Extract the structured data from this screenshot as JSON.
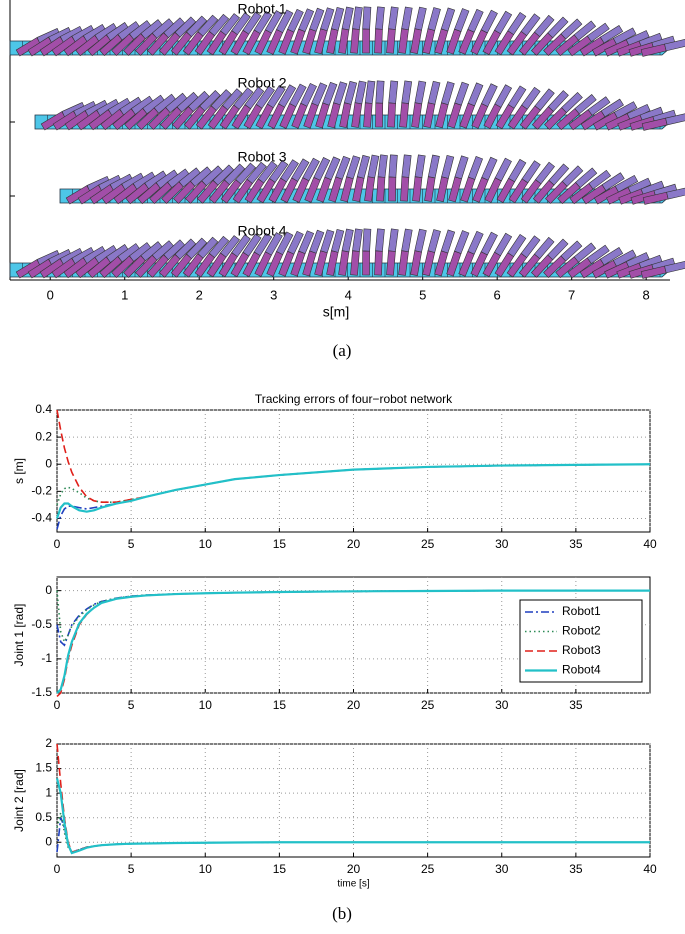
{
  "captions": [
    "(a)",
    "(b)"
  ],
  "chart_data": [
    {
      "type": "robot-configurations",
      "labels": [
        "Robot 1",
        "Robot 2",
        "Robot 3",
        "Robot 4"
      ],
      "xlabel": "s[m]",
      "xlim": [
        -0.54,
        8.32
      ],
      "xticks": [
        0,
        1,
        2,
        3,
        4,
        5,
        6,
        7,
        8
      ]
    },
    {
      "type": "line",
      "title": "Tracking errors of four−robot network",
      "ylabel": "s [m]",
      "x": [
        0,
        0.25,
        0.5,
        0.75,
        1,
        1.5,
        2,
        2.5,
        3,
        4,
        5,
        6,
        8,
        10,
        12,
        15,
        20,
        25,
        30,
        35,
        40
      ],
      "xlim": [
        0,
        40
      ],
      "xticks": [
        0,
        5,
        10,
        15,
        20,
        25,
        30,
        35,
        40
      ],
      "ylim": [
        -0.5,
        0.4
      ],
      "yticks": [
        -0.4,
        -0.2,
        0,
        0.2,
        0.4
      ],
      "grid": true,
      "series": [
        {
          "color": "#1f3fbf",
          "style": "dash-dot",
          "values": [
            -0.48,
            -0.38,
            -0.33,
            -0.31,
            -0.31,
            -0.32,
            -0.33,
            -0.32,
            -0.31,
            -0.29,
            -0.27,
            -0.24,
            -0.19,
            -0.15,
            -0.11,
            -0.08,
            -0.04,
            -0.02,
            -0.01,
            -0.005,
            0
          ]
        },
        {
          "color": "#2e8b57",
          "style": "dotted",
          "values": [
            -0.3,
            -0.22,
            -0.18,
            -0.17,
            -0.18,
            -0.21,
            -0.25,
            -0.27,
            -0.28,
            -0.28,
            -0.26,
            -0.24,
            -0.19,
            -0.15,
            -0.11,
            -0.08,
            -0.04,
            -0.02,
            -0.01,
            -0.005,
            0
          ]
        },
        {
          "color": "#e0201a",
          "style": "dashed",
          "values": [
            0.4,
            0.25,
            0.12,
            0.02,
            -0.06,
            -0.17,
            -0.24,
            -0.27,
            -0.28,
            -0.28,
            -0.26,
            -0.24,
            -0.19,
            -0.15,
            -0.11,
            -0.08,
            -0.04,
            -0.02,
            -0.01,
            -0.005,
            0
          ]
        },
        {
          "color": "#22c0c8",
          "style": "solid",
          "values": [
            -0.4,
            -0.32,
            -0.29,
            -0.29,
            -0.31,
            -0.34,
            -0.35,
            -0.34,
            -0.32,
            -0.29,
            -0.27,
            -0.24,
            -0.19,
            -0.15,
            -0.11,
            -0.08,
            -0.04,
            -0.02,
            -0.01,
            -0.005,
            0
          ]
        }
      ]
    },
    {
      "type": "line",
      "ylabel": "Joint 1 [rad]",
      "x": [
        0,
        0.25,
        0.5,
        0.75,
        1,
        1.5,
        2,
        2.5,
        3,
        4,
        5,
        6,
        8,
        10,
        12,
        15,
        20,
        25,
        30,
        35,
        40
      ],
      "xlim": [
        0,
        40
      ],
      "xticks": [
        0,
        5,
        10,
        15,
        20,
        25,
        30,
        35
      ],
      "ylim": [
        -1.5,
        0.2
      ],
      "yticks": [
        -1.5,
        -1,
        -0.5,
        0
      ],
      "grid": true,
      "legend": "right",
      "series": [
        {
          "name": "Robot1",
          "color": "#1f3fbf",
          "style": "dash-dot",
          "values": [
            -0.5,
            -0.75,
            -0.8,
            -0.65,
            -0.5,
            -0.36,
            -0.27,
            -0.2,
            -0.16,
            -0.11,
            -0.08,
            -0.065,
            -0.048,
            -0.038,
            -0.03,
            -0.02,
            -0.01,
            -0.005,
            0,
            0,
            0
          ]
        },
        {
          "name": "Robot2",
          "color": "#2e8b57",
          "style": "dotted",
          "values": [
            0,
            -0.6,
            -0.75,
            -0.65,
            -0.52,
            -0.38,
            -0.28,
            -0.21,
            -0.16,
            -0.11,
            -0.08,
            -0.065,
            -0.048,
            -0.038,
            -0.03,
            -0.02,
            -0.01,
            -0.005,
            0,
            0,
            0
          ]
        },
        {
          "name": "Robot3",
          "color": "#e0201a",
          "style": "dashed",
          "values": [
            -1.55,
            -1.5,
            -1.3,
            -1.0,
            -0.8,
            -0.5,
            -0.35,
            -0.25,
            -0.18,
            -0.12,
            -0.09,
            -0.07,
            -0.05,
            -0.038,
            -0.03,
            -0.02,
            -0.01,
            -0.005,
            0,
            0,
            0
          ]
        },
        {
          "name": "Robot4",
          "color": "#22c0c8",
          "style": "solid",
          "values": [
            -1.5,
            -1.45,
            -1.25,
            -0.95,
            -0.75,
            -0.48,
            -0.34,
            -0.25,
            -0.18,
            -0.12,
            -0.09,
            -0.07,
            -0.05,
            -0.038,
            -0.03,
            -0.02,
            -0.01,
            -0.005,
            0,
            0,
            0
          ]
        }
      ]
    },
    {
      "type": "line",
      "ylabel": "Joint 2 [rad]",
      "xlabel": "time [s]",
      "x": [
        0,
        0.25,
        0.5,
        0.75,
        1,
        1.5,
        2,
        2.5,
        3,
        4,
        5,
        6,
        8,
        10,
        12,
        15,
        20,
        25,
        30,
        35,
        40
      ],
      "xlim": [
        0,
        40
      ],
      "xticks": [
        0,
        5,
        10,
        15,
        20,
        25,
        30,
        35,
        40
      ],
      "ylim": [
        -0.3,
        2
      ],
      "yticks": [
        0,
        0.5,
        1,
        1.5,
        2
      ],
      "grid": true,
      "series": [
        {
          "color": "#1f3fbf",
          "style": "dash-dot",
          "values": [
            -0.2,
            0.5,
            0.3,
            -0.05,
            -0.2,
            -0.15,
            -0.1,
            -0.08,
            -0.06,
            -0.04,
            -0.03,
            -0.025,
            -0.015,
            -0.01,
            -0.005,
            0,
            0,
            0,
            0,
            0,
            0
          ]
        },
        {
          "color": "#2e8b57",
          "style": "dotted",
          "values": [
            0.3,
            0.6,
            0.2,
            -0.1,
            -0.2,
            -0.15,
            -0.1,
            -0.08,
            -0.06,
            -0.04,
            -0.03,
            -0.025,
            -0.015,
            -0.01,
            -0.005,
            0,
            0,
            0,
            0,
            0,
            0
          ]
        },
        {
          "color": "#e0201a",
          "style": "dashed",
          "values": [
            2.0,
            1.2,
            0.5,
            0.0,
            -0.2,
            -0.16,
            -0.1,
            -0.08,
            -0.06,
            -0.04,
            -0.03,
            -0.025,
            -0.015,
            -0.01,
            -0.005,
            0,
            0,
            0,
            0,
            0,
            0
          ]
        },
        {
          "color": "#22c0c8",
          "style": "solid",
          "values": [
            1.3,
            1.0,
            0.4,
            -0.05,
            -0.22,
            -0.17,
            -0.11,
            -0.08,
            -0.06,
            -0.04,
            -0.03,
            -0.025,
            -0.015,
            -0.01,
            -0.005,
            0,
            0,
            0,
            0,
            0,
            0
          ]
        }
      ]
    }
  ]
}
